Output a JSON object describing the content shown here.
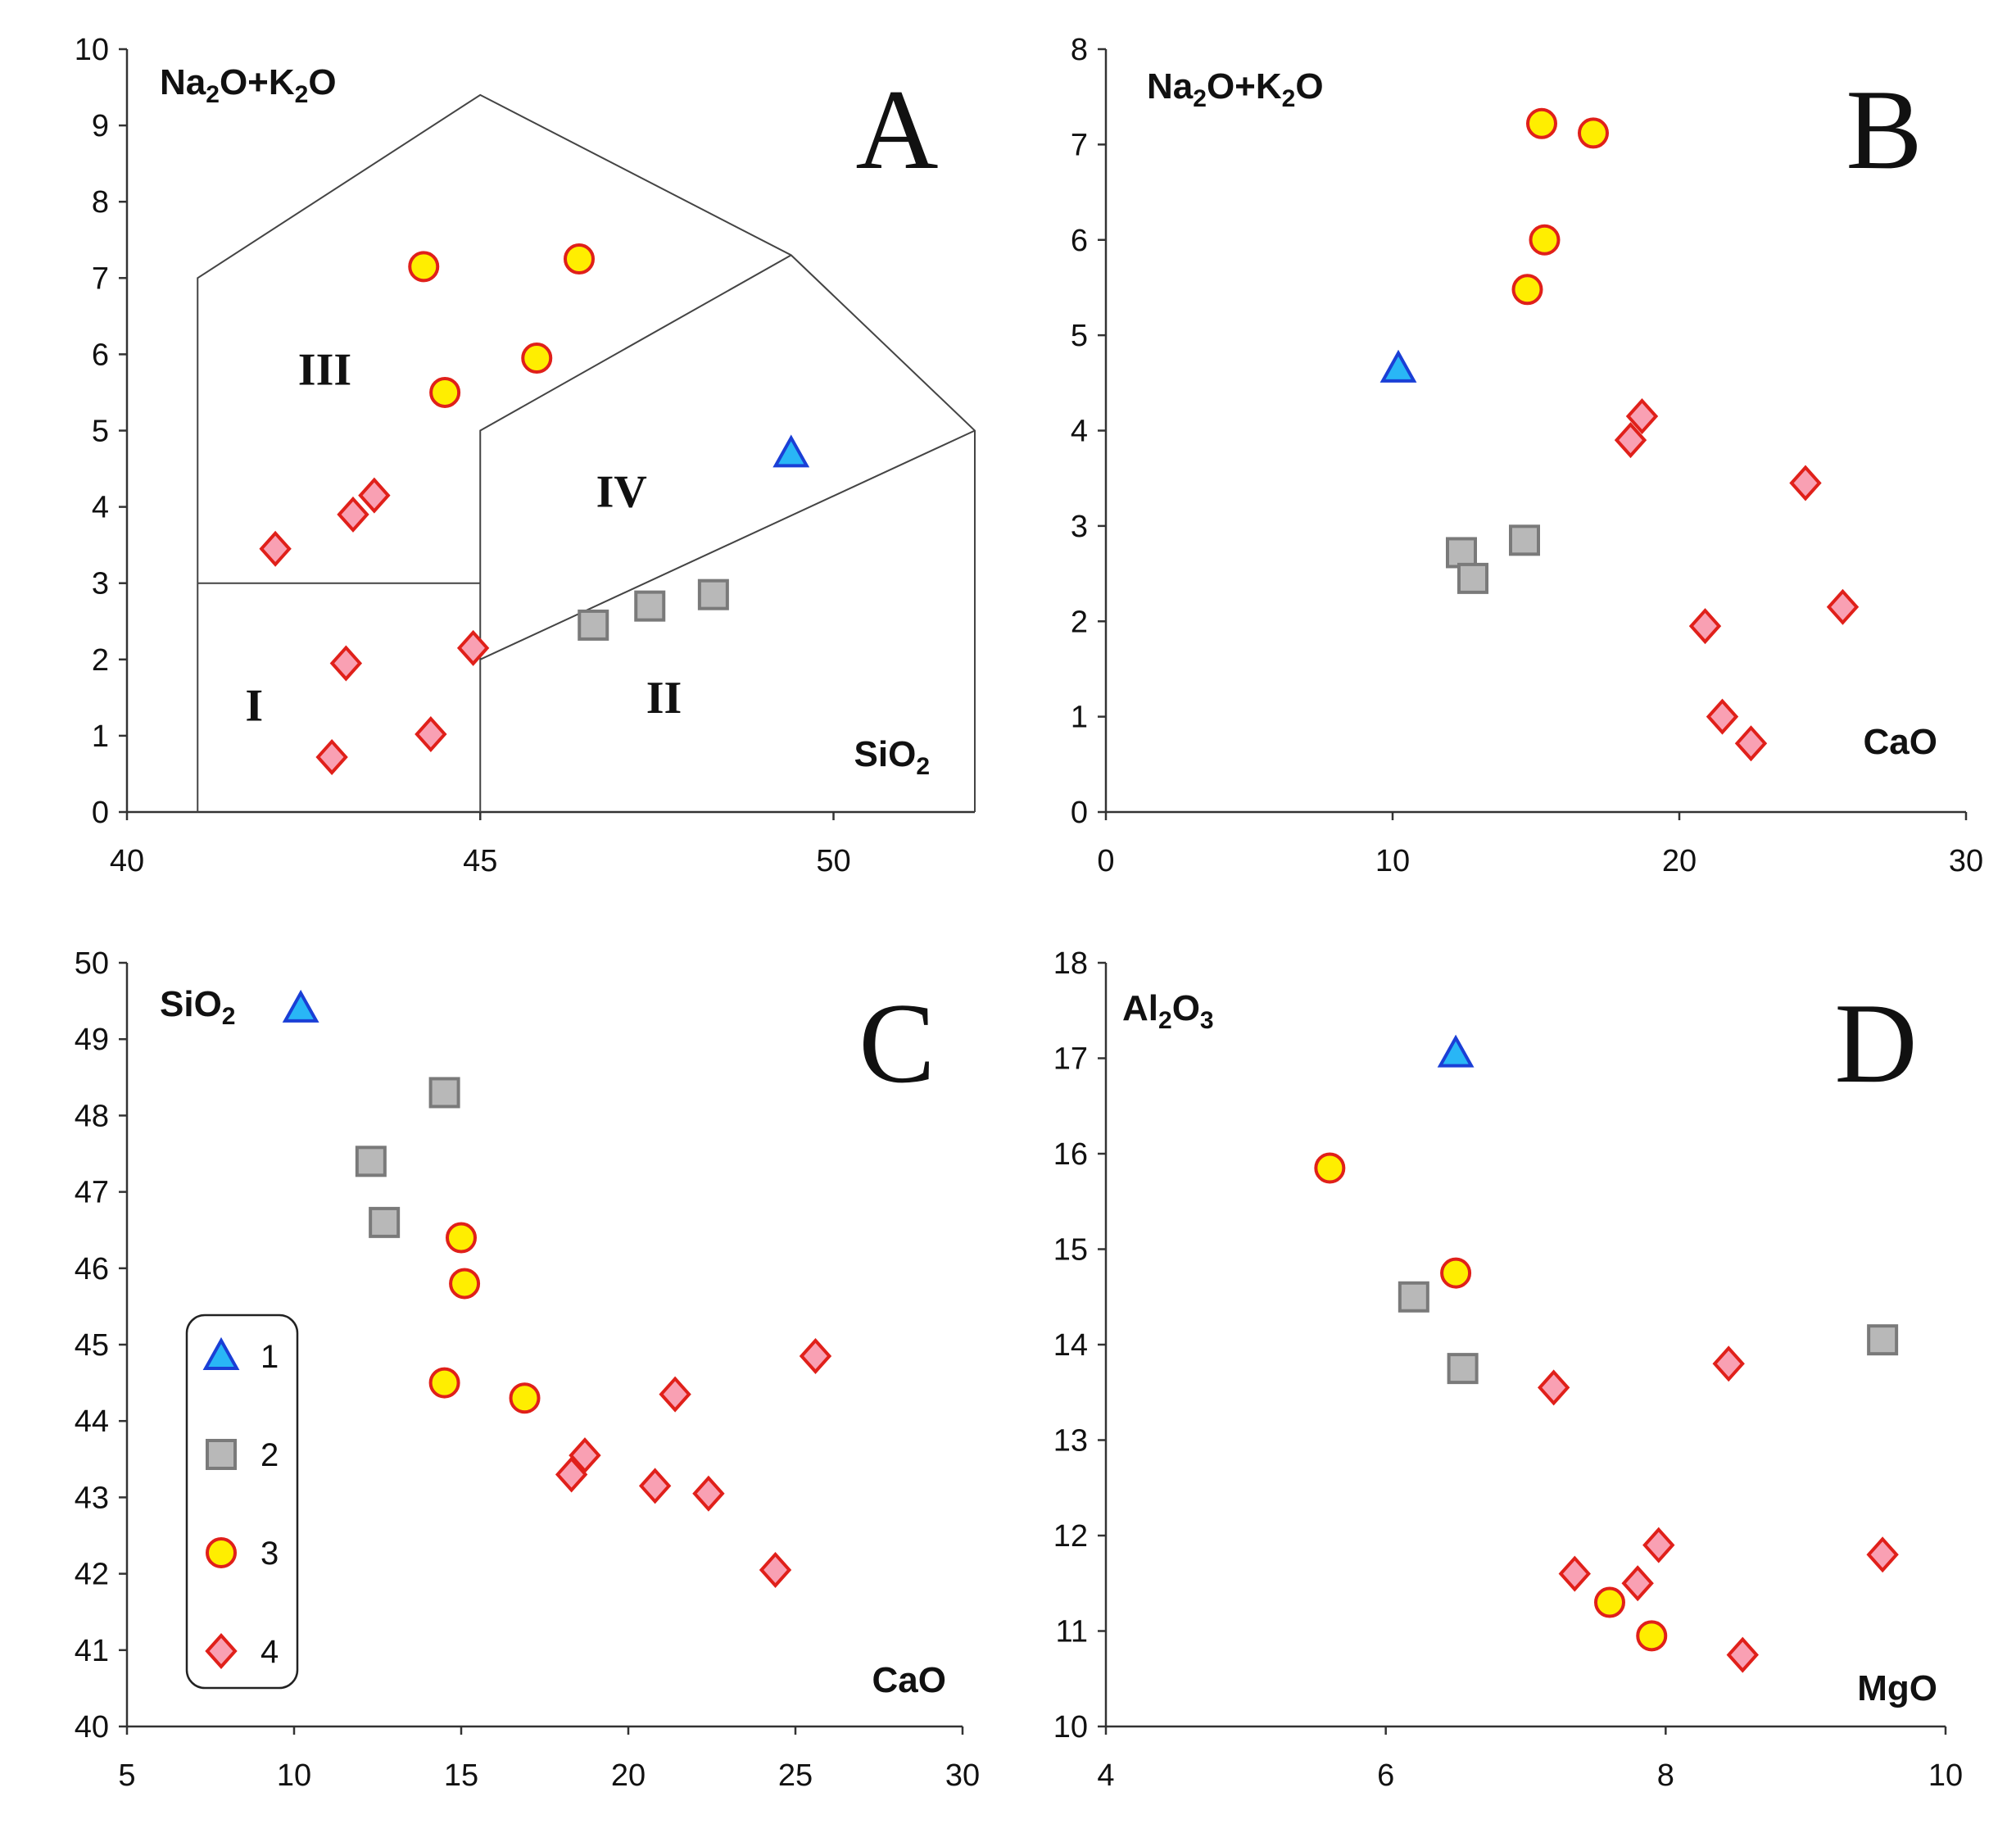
{
  "series_styles": {
    "1": {
      "marker": "triangle",
      "fill": "#29b6f6",
      "stroke": "#1a3fd6",
      "icon": "triangle-marker-icon"
    },
    "2": {
      "marker": "square",
      "fill": "#b8b8b8",
      "stroke": "#7a7a7a",
      "icon": "square-marker-icon"
    },
    "3": {
      "marker": "circle",
      "fill": "#ffee00",
      "stroke": "#e0201a",
      "icon": "circle-marker-icon"
    },
    "4": {
      "marker": "diamond",
      "fill": "#f9a0b3",
      "stroke": "#e0201a",
      "icon": "diamond-marker-icon"
    }
  },
  "legend": {
    "items": [
      {
        "series": "1",
        "label": "1"
      },
      {
        "series": "2",
        "label": "2"
      },
      {
        "series": "3",
        "label": "3"
      },
      {
        "series": "4",
        "label": "4"
      }
    ]
  },
  "chart_data": [
    {
      "id": "A",
      "type": "scatter",
      "panel_label": "A",
      "xlim": [
        40,
        52
      ],
      "ylim": [
        0,
        10
      ],
      "xticks": [
        40,
        45,
        50
      ],
      "yticks": [
        0,
        1,
        2,
        3,
        4,
        5,
        6,
        7,
        8,
        9,
        10
      ],
      "ylabel": {
        "main": "Na",
        "sub1": "2",
        "mid": "O+K",
        "sub2": "2",
        "end": "O"
      },
      "xlabel": {
        "main": "SiO",
        "sub1": "2"
      },
      "regions": [
        {
          "label": "I",
          "x": 41.8,
          "y": 1.2
        },
        {
          "label": "II",
          "x": 47.6,
          "y": 1.3
        },
        {
          "label": "III",
          "x": 42.8,
          "y": 5.6
        },
        {
          "label": "IV",
          "x": 47.0,
          "y": 4.0
        }
      ],
      "boundaries": [
        [
          [
            41,
            0
          ],
          [
            41,
            7
          ],
          [
            45,
            9.4
          ],
          [
            49.4,
            7.3
          ],
          [
            52,
            5
          ],
          [
            52,
            0
          ]
        ],
        [
          [
            41,
            3
          ],
          [
            45,
            3
          ]
        ],
        [
          [
            45,
            0
          ],
          [
            45,
            5
          ],
          [
            49.4,
            7.3
          ]
        ],
        [
          [
            45,
            2
          ],
          [
            52,
            5
          ]
        ]
      ],
      "series": [
        {
          "name": "1",
          "points": [
            [
              49.4,
              4.7
            ]
          ]
        },
        {
          "name": "2",
          "points": [
            [
              46.6,
              2.45
            ],
            [
              47.4,
              2.7
            ],
            [
              48.3,
              2.85
            ]
          ]
        },
        {
          "name": "3",
          "points": [
            [
              44.2,
              7.15
            ],
            [
              46.4,
              7.25
            ],
            [
              45.8,
              5.95
            ],
            [
              44.5,
              5.5
            ]
          ]
        },
        {
          "name": "4",
          "points": [
            [
              42.1,
              3.45
            ],
            [
              43.2,
              3.9
            ],
            [
              43.5,
              4.15
            ],
            [
              43.1,
              1.95
            ],
            [
              44.9,
              2.15
            ],
            [
              42.9,
              0.72
            ],
            [
              44.3,
              1.02
            ]
          ]
        }
      ]
    },
    {
      "id": "B",
      "type": "scatter",
      "panel_label": "B",
      "xlim": [
        0,
        30
      ],
      "ylim": [
        0,
        8
      ],
      "xticks": [
        0,
        10,
        20,
        30
      ],
      "yticks": [
        0,
        1,
        2,
        3,
        4,
        5,
        6,
        7,
        8
      ],
      "ylabel": {
        "main": "Na",
        "sub1": "2",
        "mid": "O+K",
        "sub2": "2",
        "end": "O"
      },
      "xlabel": {
        "main": "CaO",
        "sub1": ""
      },
      "series": [
        {
          "name": "1",
          "points": [
            [
              10.2,
              4.65
            ]
          ]
        },
        {
          "name": "2",
          "points": [
            [
              12.4,
              2.72
            ],
            [
              12.8,
              2.45
            ],
            [
              14.6,
              2.85
            ]
          ]
        },
        {
          "name": "3",
          "points": [
            [
              15.2,
              7.22
            ],
            [
              17.0,
              7.12
            ],
            [
              15.3,
              6.0
            ],
            [
              14.7,
              5.48
            ]
          ]
        },
        {
          "name": "4",
          "points": [
            [
              18.7,
              4.15
            ],
            [
              18.3,
              3.9
            ],
            [
              24.4,
              3.45
            ],
            [
              25.7,
              2.15
            ],
            [
              20.9,
              1.95
            ],
            [
              21.5,
              1.0
            ],
            [
              22.5,
              0.72
            ]
          ]
        }
      ]
    },
    {
      "id": "C",
      "type": "scatter",
      "panel_label": "C",
      "xlim": [
        5,
        30
      ],
      "ylim": [
        40,
        50
      ],
      "xticks": [
        5,
        10,
        15,
        20,
        25,
        30
      ],
      "yticks": [
        40,
        41,
        42,
        43,
        44,
        45,
        46,
        47,
        48,
        49,
        50
      ],
      "ylabel": {
        "main": "SiO",
        "sub1": "2",
        "mid": "",
        "sub2": "",
        "end": ""
      },
      "xlabel": {
        "main": "CaO",
        "sub1": ""
      },
      "series": [
        {
          "name": "1",
          "points": [
            [
              10.2,
              49.4
            ]
          ]
        },
        {
          "name": "2",
          "points": [
            [
              14.5,
              48.3
            ],
            [
              12.3,
              47.4
            ],
            [
              12.7,
              46.6
            ]
          ]
        },
        {
          "name": "3",
          "points": [
            [
              15.0,
              46.4
            ],
            [
              15.1,
              45.8
            ],
            [
              14.5,
              44.5
            ],
            [
              16.9,
              44.3
            ]
          ]
        },
        {
          "name": "4",
          "points": [
            [
              25.6,
              44.85
            ],
            [
              21.4,
              44.35
            ],
            [
              18.7,
              43.55
            ],
            [
              18.3,
              43.3
            ],
            [
              20.8,
              43.15
            ],
            [
              22.4,
              43.05
            ],
            [
              24.4,
              42.05
            ]
          ]
        }
      ]
    },
    {
      "id": "D",
      "type": "scatter",
      "panel_label": "D",
      "xlim": [
        4,
        10
      ],
      "ylim": [
        10,
        18
      ],
      "xticks": [
        4,
        6,
        8,
        10
      ],
      "yticks": [
        10,
        11,
        12,
        13,
        14,
        15,
        16,
        17,
        18
      ],
      "ylabel": {
        "main": "Al",
        "sub1": "2",
        "mid": "O",
        "sub2": "3",
        "end": ""
      },
      "xlabel": {
        "main": "MgO",
        "sub1": ""
      },
      "series": [
        {
          "name": "1",
          "points": [
            [
              6.5,
              17.05
            ]
          ]
        },
        {
          "name": "2",
          "points": [
            [
              6.2,
              14.5
            ],
            [
              6.55,
              13.75
            ],
            [
              9.55,
              14.05
            ]
          ]
        },
        {
          "name": "3",
          "points": [
            [
              5.6,
              15.85
            ],
            [
              6.5,
              14.75
            ],
            [
              7.6,
              11.3
            ],
            [
              7.9,
              10.95
            ]
          ]
        },
        {
          "name": "4",
          "points": [
            [
              7.2,
              13.55
            ],
            [
              8.45,
              13.8
            ],
            [
              7.35,
              11.6
            ],
            [
              7.8,
              11.5
            ],
            [
              7.95,
              11.9
            ],
            [
              9.55,
              11.8
            ],
            [
              8.55,
              10.75
            ]
          ]
        }
      ]
    }
  ]
}
